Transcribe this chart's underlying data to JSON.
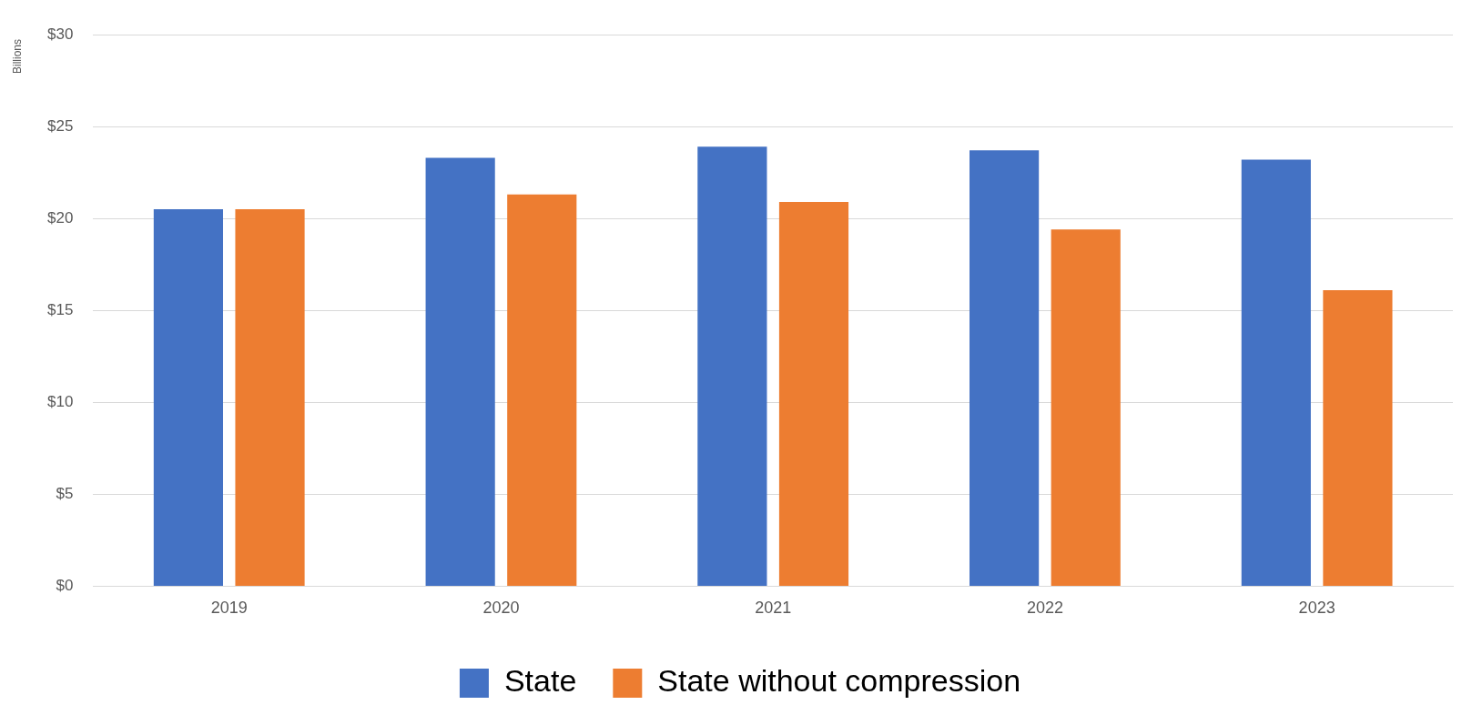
{
  "chart_data": {
    "type": "bar",
    "ylabel": "Billions",
    "categories": [
      "2019",
      "2020",
      "2021",
      "2022",
      "2023"
    ],
    "series": [
      {
        "name": "State",
        "color": "#4472c4",
        "values": [
          20.5,
          23.3,
          23.9,
          23.7,
          23.2
        ]
      },
      {
        "name": "State without compression",
        "color": "#ed7d31",
        "values": [
          20.5,
          21.3,
          20.9,
          19.4,
          16.1
        ]
      }
    ],
    "ylim": [
      0,
      30
    ],
    "yticks": [
      {
        "value": 0,
        "label": "$0"
      },
      {
        "value": 5,
        "label": "$5"
      },
      {
        "value": 10,
        "label": "$10"
      },
      {
        "value": 15,
        "label": "$15"
      },
      {
        "value": 20,
        "label": "$20"
      },
      {
        "value": 25,
        "label": "$25"
      },
      {
        "value": 30,
        "label": "$30"
      }
    ],
    "grid": "y",
    "legend": "bottom"
  }
}
